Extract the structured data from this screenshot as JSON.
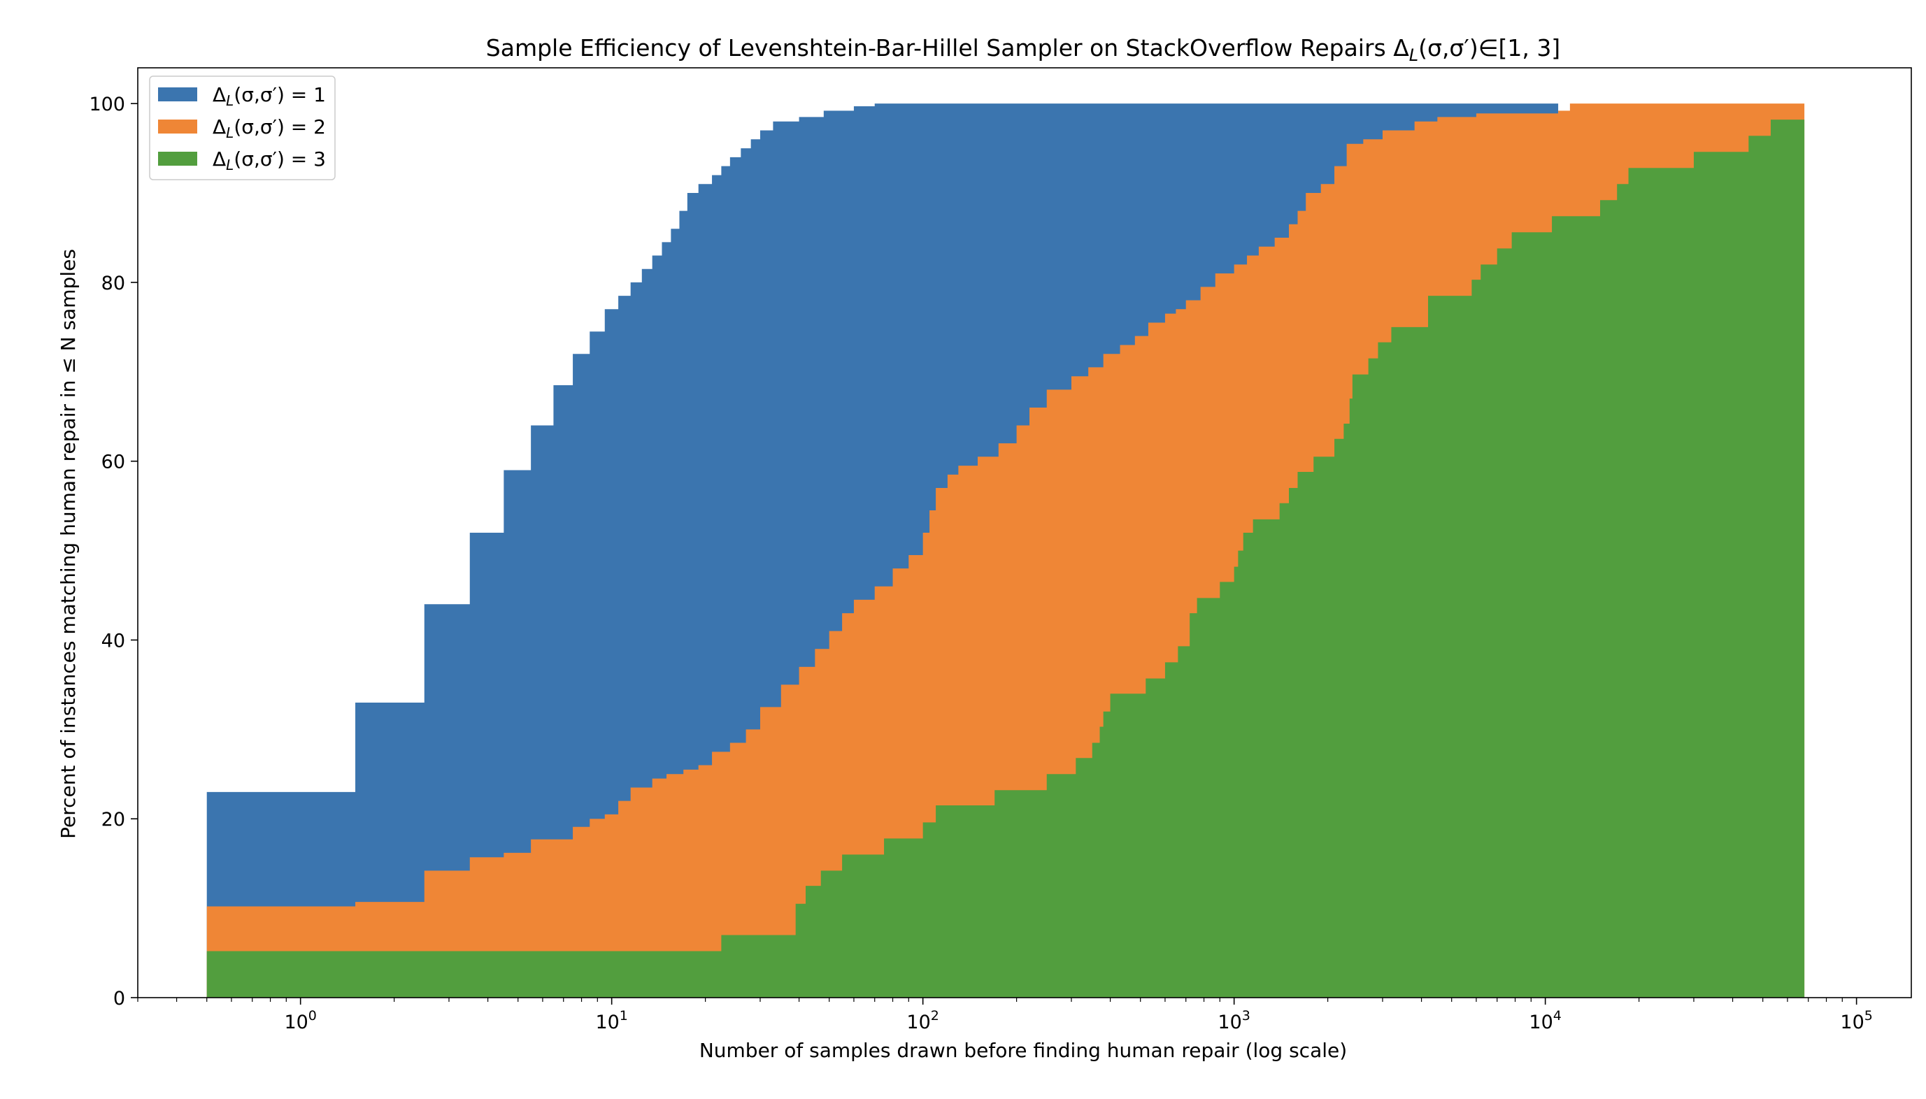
{
  "chart_data": {
    "type": "area",
    "title": "Sample Efficiency of Levenshtein-Bar-Hillel Sampler on StackOverflow Repairs Δ_L(σ,σ′)∈[1, 3]",
    "xlabel": "Number of samples drawn before finding human repair (log scale)",
    "ylabel": "Percent of instances matching human repair in ≤ N samples",
    "xscale": "log",
    "xlim": [
      0.3,
      150000
    ],
    "ylim": [
      0,
      104
    ],
    "yticks": [
      0,
      20,
      40,
      60,
      80,
      100
    ],
    "xticks": [
      {
        "value": 1,
        "base": "10",
        "exp": "0"
      },
      {
        "value": 10,
        "base": "10",
        "exp": "1"
      },
      {
        "value": 100,
        "base": "10",
        "exp": "2"
      },
      {
        "value": 1000,
        "base": "10",
        "exp": "3"
      },
      {
        "value": 10000,
        "base": "10",
        "exp": "4"
      },
      {
        "value": 100000,
        "base": "10",
        "exp": "5"
      }
    ],
    "legend_position": "top-left",
    "grid": false,
    "series": [
      {
        "name": "Δ_L(σ,σ′) = 1",
        "color": "#3b75af",
        "points": [
          [
            0.5,
            23
          ],
          [
            1.5,
            33
          ],
          [
            2.5,
            44
          ],
          [
            3.5,
            52
          ],
          [
            4.5,
            59
          ],
          [
            5.5,
            64
          ],
          [
            6.5,
            68.5
          ],
          [
            7.5,
            72
          ],
          [
            8.5,
            74.5
          ],
          [
            9.5,
            77
          ],
          [
            10.5,
            78.5
          ],
          [
            11.5,
            80
          ],
          [
            12.5,
            81.5
          ],
          [
            13.5,
            83
          ],
          [
            14.5,
            84.5
          ],
          [
            15.5,
            86
          ],
          [
            16.5,
            88
          ],
          [
            17.5,
            90
          ],
          [
            19,
            91
          ],
          [
            21,
            92
          ],
          [
            22.5,
            93
          ],
          [
            24,
            94
          ],
          [
            26,
            95
          ],
          [
            28,
            96
          ],
          [
            30,
            97
          ],
          [
            33,
            98
          ],
          [
            40,
            98.5
          ],
          [
            48,
            99.2
          ],
          [
            60,
            99.7
          ],
          [
            70,
            100
          ],
          [
            11000,
            100
          ]
        ]
      },
      {
        "name": "Δ_L(σ,σ′) = 2",
        "color": "#ef8636",
        "points": [
          [
            0.5,
            10.2
          ],
          [
            1.5,
            10.7
          ],
          [
            2.5,
            14.2
          ],
          [
            3.5,
            15.7
          ],
          [
            4.5,
            16.2
          ],
          [
            5.5,
            17.7
          ],
          [
            7.5,
            19.1
          ],
          [
            8.5,
            20
          ],
          [
            9.5,
            20.5
          ],
          [
            10.5,
            22
          ],
          [
            11.5,
            23.5
          ],
          [
            13.5,
            24.5
          ],
          [
            15,
            25
          ],
          [
            17,
            25.5
          ],
          [
            19,
            26
          ],
          [
            21,
            27.5
          ],
          [
            24,
            28.5
          ],
          [
            27,
            30
          ],
          [
            30,
            32.5
          ],
          [
            35,
            35
          ],
          [
            40,
            37
          ],
          [
            45,
            39
          ],
          [
            50,
            41
          ],
          [
            55,
            43
          ],
          [
            60,
            44.5
          ],
          [
            70,
            46
          ],
          [
            80,
            48
          ],
          [
            90,
            49.5
          ],
          [
            100,
            52
          ],
          [
            105,
            54.5
          ],
          [
            110,
            57
          ],
          [
            120,
            58.5
          ],
          [
            130,
            59.5
          ],
          [
            150,
            60.5
          ],
          [
            175,
            62
          ],
          [
            200,
            64
          ],
          [
            220,
            66
          ],
          [
            250,
            68
          ],
          [
            300,
            69.5
          ],
          [
            340,
            70.5
          ],
          [
            380,
            72
          ],
          [
            430,
            73
          ],
          [
            480,
            74
          ],
          [
            530,
            75.5
          ],
          [
            600,
            76.5
          ],
          [
            650,
            77
          ],
          [
            700,
            78
          ],
          [
            780,
            79.5
          ],
          [
            870,
            81
          ],
          [
            1000,
            82
          ],
          [
            1100,
            83
          ],
          [
            1200,
            84
          ],
          [
            1350,
            85
          ],
          [
            1500,
            86.5
          ],
          [
            1600,
            88
          ],
          [
            1700,
            90
          ],
          [
            1900,
            91
          ],
          [
            2100,
            93
          ],
          [
            2300,
            95.5
          ],
          [
            2600,
            96
          ],
          [
            3000,
            97
          ],
          [
            3800,
            98
          ],
          [
            4500,
            98.5
          ],
          [
            6000,
            98.9
          ],
          [
            11000,
            99.2
          ],
          [
            12000,
            100
          ],
          [
            68000,
            100
          ]
        ]
      },
      {
        "name": "Δ_L(σ,σ′) = 3",
        "color": "#529e3e",
        "points": [
          [
            0.5,
            5.2
          ],
          [
            22.5,
            7
          ],
          [
            39,
            10.5
          ],
          [
            42,
            12.5
          ],
          [
            47,
            14.2
          ],
          [
            55,
            16
          ],
          [
            75,
            17.8
          ],
          [
            100,
            19.6
          ],
          [
            110,
            21.5
          ],
          [
            170,
            23.2
          ],
          [
            250,
            25
          ],
          [
            310,
            26.8
          ],
          [
            350,
            28.5
          ],
          [
            370,
            30.3
          ],
          [
            380,
            32
          ],
          [
            400,
            34
          ],
          [
            520,
            35.7
          ],
          [
            600,
            37.5
          ],
          [
            660,
            39.3
          ],
          [
            720,
            43
          ],
          [
            760,
            44.7
          ],
          [
            900,
            46.5
          ],
          [
            1000,
            48.2
          ],
          [
            1030,
            50
          ],
          [
            1070,
            52
          ],
          [
            1150,
            53.5
          ],
          [
            1400,
            55.3
          ],
          [
            1500,
            57
          ],
          [
            1600,
            58.8
          ],
          [
            1800,
            60.5
          ],
          [
            2100,
            62.5
          ],
          [
            2250,
            64.2
          ],
          [
            2350,
            67
          ],
          [
            2400,
            69.7
          ],
          [
            2700,
            71.5
          ],
          [
            2900,
            73.3
          ],
          [
            3200,
            75
          ],
          [
            4200,
            78.5
          ],
          [
            5800,
            80.3
          ],
          [
            6200,
            82
          ],
          [
            7000,
            83.8
          ],
          [
            7800,
            85.6
          ],
          [
            10500,
            87.4
          ],
          [
            15000,
            89.2
          ],
          [
            17000,
            91
          ],
          [
            18500,
            92.8
          ],
          [
            30000,
            94.6
          ],
          [
            45000,
            96.4
          ],
          [
            53000,
            98.2
          ],
          [
            68000,
            98.2
          ]
        ]
      }
    ]
  }
}
